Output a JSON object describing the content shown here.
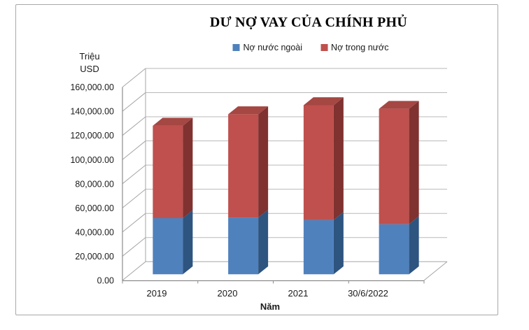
{
  "chart_data": {
    "type": "bar",
    "stacked": true,
    "projection": "3d",
    "title": "DƯ NỢ VAY CỦA CHÍNH PHỦ",
    "categories": [
      "2019",
      "2020",
      "2021",
      "30/6/2022"
    ],
    "series": [
      {
        "name": "Nợ nước ngoài",
        "color": "#4F81BD",
        "color_side": "#2E5480",
        "color_top": "#41699C",
        "values": [
          46500,
          47000,
          45000,
          41500
        ]
      },
      {
        "name": "Nợ trong nước",
        "color": "#BF504D",
        "color_side": "#7F3230",
        "color_top": "#A54743",
        "values": [
          76500,
          85500,
          95000,
          95500
        ]
      }
    ],
    "xlabel": "Năm",
    "y_unit_lines": [
      "Triệu",
      "USD"
    ],
    "y_tick_labels": [
      "0.00",
      "20,000.00",
      "40,000.00",
      "60,000.00",
      "80,000.00",
      "100,000.00",
      "120,000.00",
      "140,000.00",
      "160,000.00"
    ],
    "ylim": [
      0,
      160000
    ],
    "ytick_step": 20000,
    "grid": true,
    "legend_position": "top"
  },
  "colors": {
    "gridline": "#b9b9b9",
    "axis_line": "#8c8c8c",
    "depth_line": "#a6a6a6",
    "frame_border": "#a8a8a8"
  }
}
